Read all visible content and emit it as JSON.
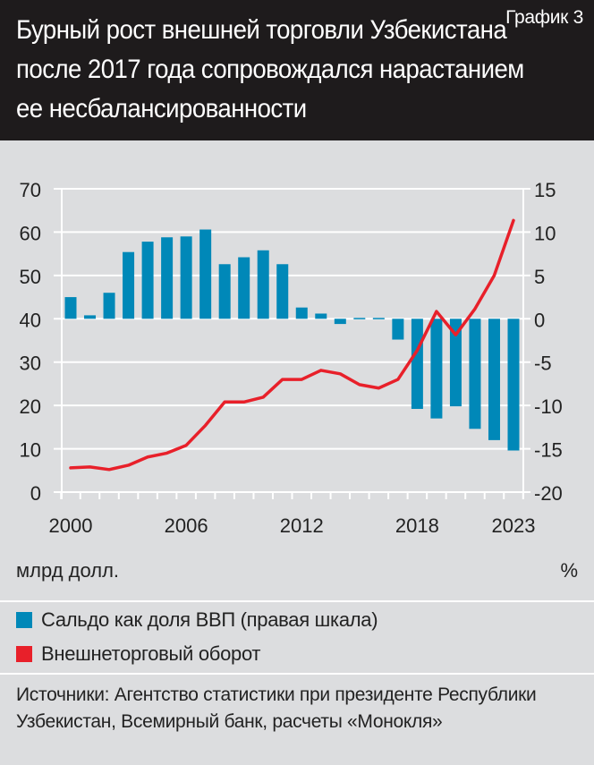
{
  "header": {
    "title": "Бурный рост внешней торговли Узбекистана после 2017 года сопровождался нарастанием ее несбалансированности",
    "tag": "График 3"
  },
  "units": {
    "left": "млрд долл.",
    "right": "%"
  },
  "legend": [
    {
      "label": "Сальдо как доля ВВП (правая шкала)",
      "color": "#0088b8"
    },
    {
      "label": "Внешнеторговый оборот",
      "color": "#e8202a"
    }
  ],
  "source": "Источники: Агентство статистики при президенте Республики Узбекистан, Всемирный банк, расчеты «Монокля»",
  "chart_data": {
    "type": "bar+line",
    "x": [
      2000,
      2001,
      2002,
      2003,
      2004,
      2005,
      2006,
      2007,
      2008,
      2009,
      2010,
      2011,
      2012,
      2013,
      2014,
      2015,
      2016,
      2017,
      2018,
      2019,
      2020,
      2021,
      2022,
      2023
    ],
    "x_tick_labels": [
      "2000",
      "2006",
      "2012",
      "2018",
      "2023"
    ],
    "left_axis": {
      "label": "млрд долл.",
      "ylim": [
        0,
        70
      ],
      "ticks": [
        "0",
        "10",
        "20",
        "30",
        "40",
        "50",
        "60",
        "70"
      ]
    },
    "right_axis": {
      "label": "%",
      "ylim": [
        -20,
        15
      ],
      "ticks": [
        "-20",
        "-15",
        "-10",
        "-5",
        "0",
        "5",
        "10",
        "15"
      ]
    },
    "grid": true,
    "series": [
      {
        "name": "Сальдо как доля ВВП (правая шкала)",
        "type": "bar",
        "axis": "right",
        "color": "#0088b8",
        "values": [
          2.5,
          0.4,
          3.0,
          7.7,
          8.9,
          9.4,
          9.5,
          10.3,
          6.3,
          7.1,
          7.9,
          6.3,
          1.3,
          0.6,
          -0.6,
          0.1,
          0.1,
          -2.4,
          -10.4,
          -11.5,
          -10.1,
          -12.7,
          -14.0,
          -15.2
        ]
      },
      {
        "name": "Внешнеторговый оборот",
        "type": "line",
        "axis": "left",
        "color": "#e8202a",
        "values": [
          5.6,
          5.8,
          5.2,
          6.2,
          8.1,
          9.0,
          10.8,
          15.4,
          20.8,
          20.8,
          21.9,
          26.0,
          26.0,
          28.1,
          27.3,
          24.8,
          24.0,
          26.0,
          32.7,
          41.7,
          36.3,
          42.3,
          50.0,
          62.7
        ]
      }
    ]
  }
}
